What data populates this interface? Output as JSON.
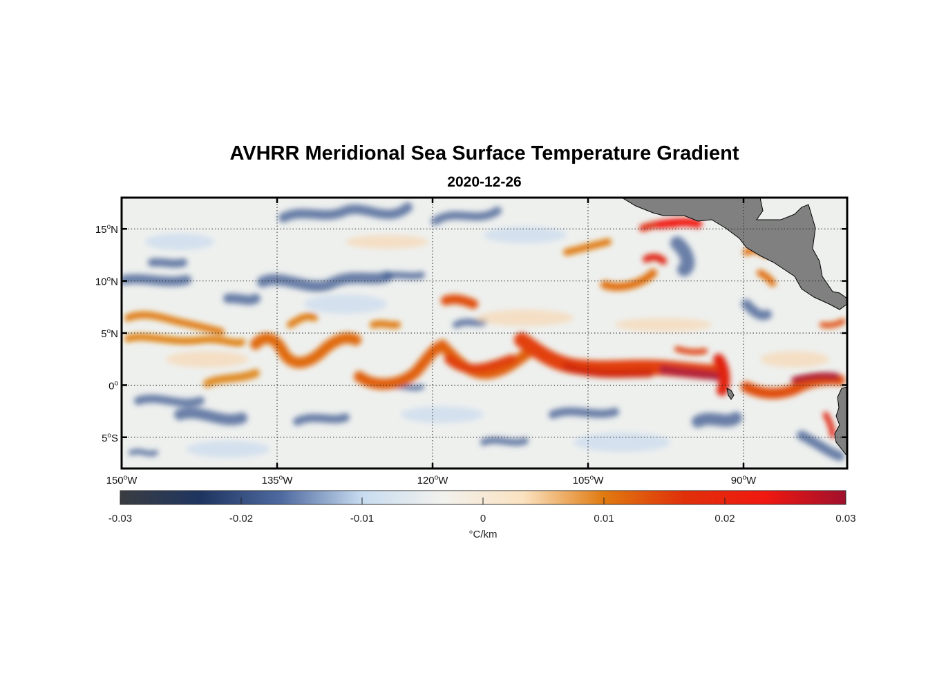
{
  "title": "AVHRR Meridional Sea Surface Temperature Gradient",
  "subtitle": "2020-12-26",
  "map": {
    "lon_range": [
      -150,
      -80
    ],
    "lat_range": [
      -8,
      18
    ],
    "lat_ticks": [
      {
        "value": 15,
        "text": "15",
        "sup": "o",
        "hemi": "N"
      },
      {
        "value": 10,
        "text": "10",
        "sup": "o",
        "hemi": "N"
      },
      {
        "value": 5,
        "text": "5",
        "sup": "o",
        "hemi": "N"
      },
      {
        "value": 0,
        "text": "0",
        "sup": "o",
        "hemi": ""
      },
      {
        "value": -5,
        "text": "5",
        "sup": "o",
        "hemi": "S"
      }
    ],
    "lon_ticks": [
      {
        "value": -150,
        "text": "150",
        "sup": "o",
        "hemi": "W"
      },
      {
        "value": -135,
        "text": "135",
        "sup": "o",
        "hemi": "W"
      },
      {
        "value": -120,
        "text": "120",
        "sup": "o",
        "hemi": "W"
      },
      {
        "value": -105,
        "text": "105",
        "sup": "o",
        "hemi": "W"
      },
      {
        "value": -90,
        "text": "90",
        "sup": "o",
        "hemi": "W"
      }
    ],
    "land_color": "#808080",
    "grid": "dotted"
  },
  "colorbar": {
    "range": [
      -0.03,
      0.03
    ],
    "ticks": [
      "-0.03",
      "-0.02",
      "-0.01",
      "0",
      "0.01",
      "0.02",
      "0.03"
    ],
    "units": "°C/km",
    "stops": [
      "#3a3d42",
      "#1e3560",
      "#4e6aa0",
      "#c8dcf0",
      "#f2f2ee",
      "#fbe2c0",
      "#e07a10",
      "#e0300a",
      "#f01810",
      "#a0102c"
    ]
  }
}
